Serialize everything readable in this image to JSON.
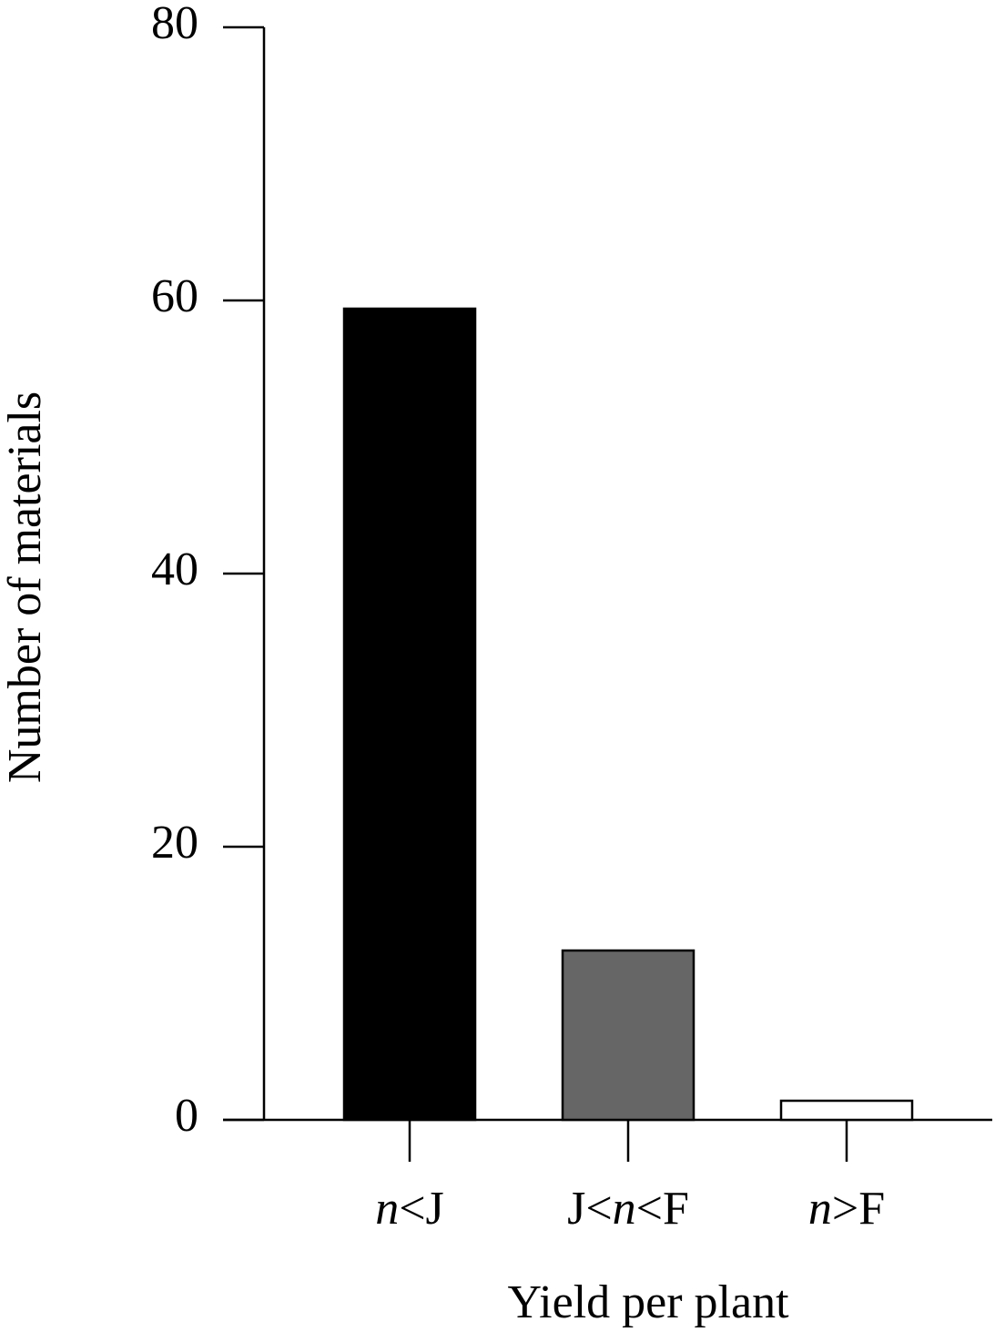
{
  "chart_data": {
    "type": "bar",
    "x_label": "Yield per plant",
    "y_label": "Number of materials",
    "categories": [
      "n<J",
      "J<n<F",
      "n>F"
    ],
    "values": [
      59.4,
      12.4,
      1.4
    ],
    "colors": [
      "#000000",
      "#666666",
      "#ffffff"
    ],
    "edgecolor": "#000000",
    "ylim": [
      0,
      80
    ],
    "yticks": [
      0,
      20,
      40,
      60,
      80
    ],
    "grid": false
  }
}
